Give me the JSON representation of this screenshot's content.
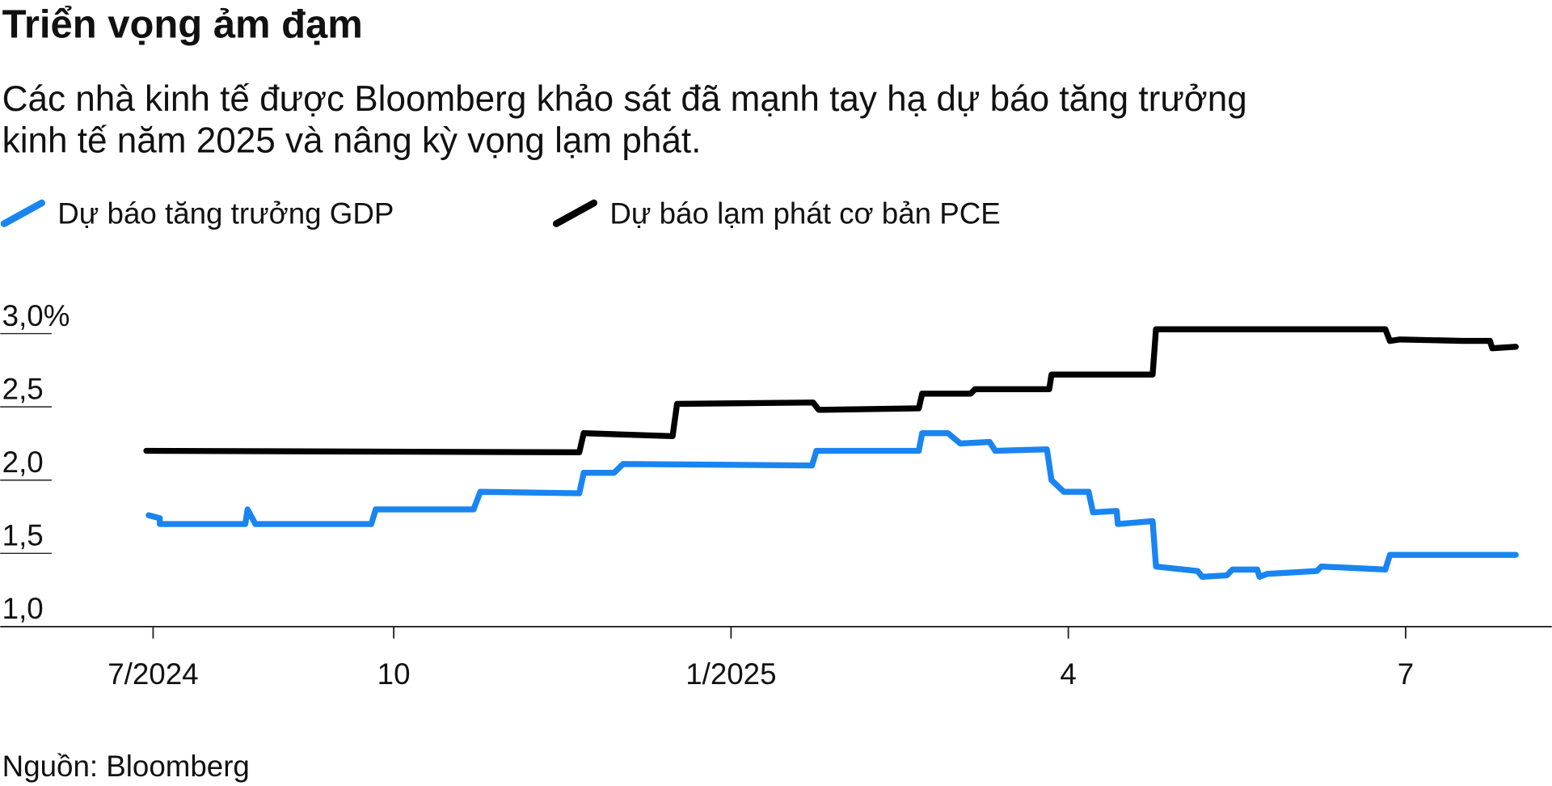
{
  "chart_data": {
    "type": "line",
    "title": "Triển vọng ảm đạm",
    "subtitle": [
      "Các nhà kinh tế được Bloomberg khảo sát đã mạnh tay hạ dự báo tăng trưởng",
      "kinh tế năm 2025 và nâng kỳ vọng lạm phát."
    ],
    "source": "Nguồn: Bloomberg",
    "series": [
      {
        "name": "Dự báo tăng trưởng GDP",
        "color": "#1a85f0",
        "x": [
          0.82,
          0.92,
          0.92,
          1.68,
          1.7,
          1.77,
          2.8,
          2.84,
          3.71,
          3.77,
          4.65,
          4.69,
          4.96,
          5.04,
          6.72,
          6.76,
          7.67,
          7.7,
          7.93,
          8.04,
          8.3,
          8.35,
          8.81,
          8.85,
          8.96,
          9.18,
          9.22,
          9.43,
          9.44,
          9.75,
          9.78,
          10.15,
          10.19,
          10.41,
          10.46,
          10.68,
          10.7,
          10.77,
          11.21,
          11.25,
          11.82,
          11.86,
          12.98
        ],
        "values": [
          1.76,
          1.74,
          1.7,
          1.7,
          1.8,
          1.7,
          1.7,
          1.8,
          1.8,
          1.92,
          1.91,
          2.05,
          2.05,
          2.11,
          2.1,
          2.2,
          2.2,
          2.32,
          2.32,
          2.25,
          2.26,
          2.2,
          2.21,
          2.0,
          1.92,
          1.92,
          1.78,
          1.79,
          1.7,
          1.72,
          1.41,
          1.38,
          1.34,
          1.35,
          1.39,
          1.39,
          1.34,
          1.36,
          1.38,
          1.41,
          1.39,
          1.49,
          1.49
        ]
      },
      {
        "name": "Dự báo lạm phát cơ bản PCE",
        "color": "#000000",
        "x": [
          0.8,
          4.65,
          4.69,
          5.48,
          5.52,
          6.73,
          6.78,
          7.67,
          7.7,
          8.13,
          8.17,
          8.83,
          8.85,
          9.75,
          9.78,
          11.82,
          11.86,
          11.95,
          12.51,
          12.75,
          12.77,
          12.98
        ],
        "values": [
          2.2,
          2.19,
          2.32,
          2.3,
          2.52,
          2.53,
          2.48,
          2.49,
          2.59,
          2.59,
          2.62,
          2.62,
          2.72,
          2.72,
          3.03,
          3.03,
          2.95,
          2.96,
          2.95,
          2.95,
          2.9,
          2.91
        ]
      }
    ],
    "xlim": [
      -0.5,
      13.3
    ],
    "xticks": [
      {
        "value": 0.86,
        "label": "7/2024"
      },
      {
        "value": 3,
        "label": "10"
      },
      {
        "value": 6,
        "label": "1/2025"
      },
      {
        "value": 9,
        "label": "4"
      },
      {
        "value": 12,
        "label": "7"
      }
    ],
    "ylim": [
      1.0,
      3.0
    ],
    "yticks": [
      {
        "value": 1.0,
        "label": "1,0"
      },
      {
        "value": 1.5,
        "label": "1,5"
      },
      {
        "value": 2.0,
        "label": "2,0"
      },
      {
        "value": 2.5,
        "label": "2,5"
      },
      {
        "value": 3.0,
        "label": "3,0%"
      }
    ]
  }
}
